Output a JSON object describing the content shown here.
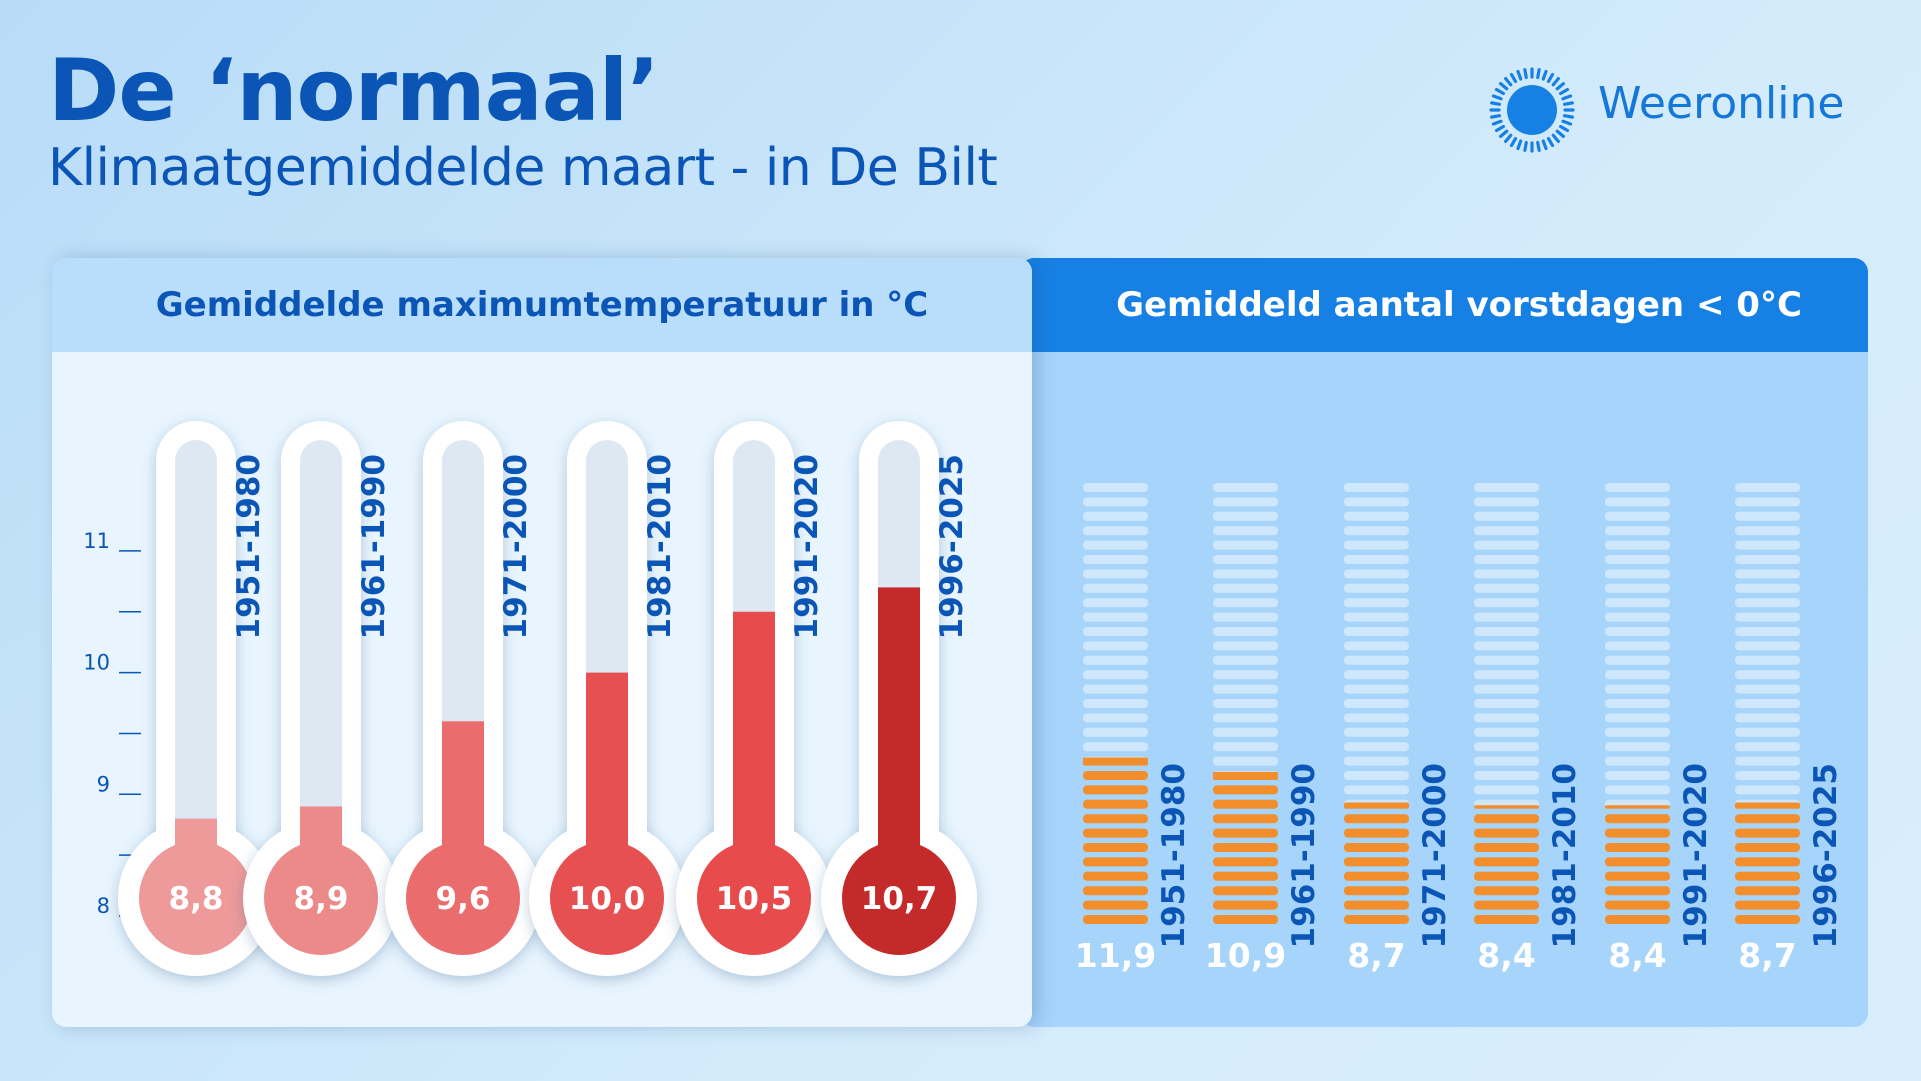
{
  "header": {
    "title": "De ‘normaal’",
    "subtitle": "Klimaatgemiddelde maart - in De Bilt",
    "brand": "Weeronline"
  },
  "colors": {
    "title_blue": "#0a55b5",
    "header_blue": "#1680e4",
    "orange": "#f28e2b",
    "thermo_colors": [
      "#ef9a9a",
      "#ec8a8a",
      "#eb6c6c",
      "#e65050",
      "#e84b4b",
      "#c42a2a"
    ]
  },
  "chart_data": [
    {
      "type": "bar",
      "title": "Gemiddelde maximumtemperatuur in °C",
      "categories": [
        "1951-1980",
        "1961-1990",
        "1971-2000",
        "1981-2010",
        "1991-2020",
        "1996-2025"
      ],
      "values": [
        8.8,
        8.9,
        9.6,
        10.0,
        10.5,
        10.7
      ],
      "value_labels": [
        "8,8",
        "8,9",
        "9,6",
        "10,0",
        "10,5",
        "10,7"
      ],
      "y_ticks": [
        "8",
        "9",
        "10",
        "11"
      ],
      "ylim": [
        8,
        11
      ],
      "style": "thermometer"
    },
    {
      "type": "bar",
      "title_parts": [
        "Gemiddeld aantal ",
        "vorstdagen",
        " < 0°C"
      ],
      "categories": [
        "1951-1980",
        "1961-1990",
        "1971-2000",
        "1981-2010",
        "1991-2020",
        "1996-2025"
      ],
      "values": [
        11.9,
        10.9,
        8.7,
        8.4,
        8.4,
        8.7
      ],
      "value_labels": [
        "11,9",
        "10,9",
        "8,7",
        "8,4",
        "8,4",
        "8,7"
      ],
      "ylim": [
        0,
        31
      ],
      "style": "stacked-days"
    }
  ]
}
